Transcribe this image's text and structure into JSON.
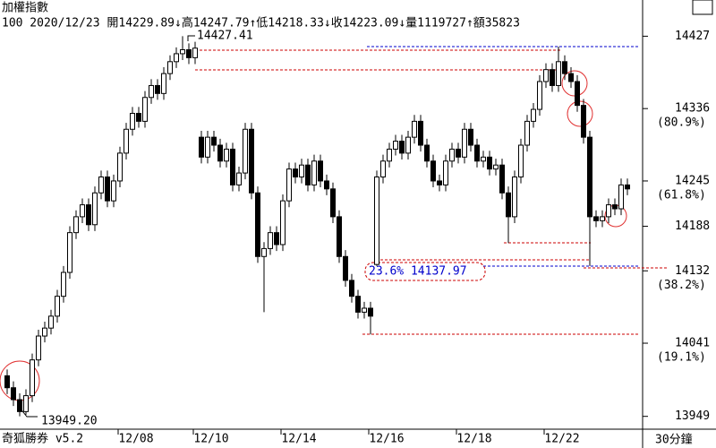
{
  "chart_data": {
    "type": "candlestick",
    "title": "加權指數",
    "subtitle": "100 2020/12/23 開14229.89↓高14247.79↑低14218.33↓收14223.09↓量1119727↑額35823",
    "footer": "奇狐勝券 v5.2",
    "period": "30分鐘",
    "up_color": "#ffffff",
    "down_color": "#000000",
    "categories": [
      null,
      null,
      null,
      null,
      null,
      null,
      null,
      null,
      null,
      null,
      null,
      null,
      null,
      null,
      null,
      null,
      null,
      null,
      null,
      null,
      null,
      null,
      "12/08",
      null,
      null,
      null,
      null,
      null,
      null,
      null,
      null,
      null,
      null,
      null,
      "12/10",
      null,
      null,
      null,
      null,
      null,
      null,
      null,
      null,
      null,
      null,
      null,
      null,
      null,
      "12/14",
      null,
      null,
      null,
      null,
      null,
      null,
      null,
      null,
      null,
      null,
      null,
      null,
      null,
      "12/16",
      null,
      null,
      null,
      null,
      null,
      null,
      null,
      null,
      null,
      null,
      null,
      null,
      null,
      "12/18",
      null,
      null,
      null,
      null,
      null,
      null,
      null,
      null,
      null,
      null,
      null,
      null,
      null,
      "12/22",
      null,
      null,
      null,
      null,
      null,
      null,
      null,
      null,
      null
    ],
    "open": [
      14000,
      13985,
      13970,
      13955,
      13975,
      14020,
      14050,
      14060,
      14075,
      14100,
      14130,
      14180,
      14200,
      14215,
      14190,
      14230,
      14250,
      14220,
      14245,
      14280,
      14310,
      14330,
      14320,
      14350,
      14365,
      14355,
      14380,
      14395,
      14405,
      14410,
      14400,
      14300,
      14275,
      14300,
      14290,
      14270,
      14285,
      14240,
      14255,
      14310,
      14230,
      14150,
      14160,
      14180,
      14165,
      14220,
      14260,
      14250,
      14265,
      14240,
      14270,
      14245,
      14235,
      14200,
      14150,
      14120,
      14100,
      14080,
      14085,
      14140,
      14250,
      14270,
      14285,
      14295,
      14280,
      14300,
      14320,
      14290,
      14270,
      14245,
      14240,
      14270,
      14285,
      14275,
      14310,
      14290,
      14270,
      14275,
      14260,
      14265,
      14230,
      14200,
      14250,
      14290,
      14320,
      14335,
      14370,
      14385,
      14365,
      14395,
      14380,
      14370,
      14340,
      14300,
      14200,
      14195,
      14200,
      14215,
      14210,
      14240
    ],
    "high": [
      14008,
      13993,
      13978,
      13983,
      14028,
      14058,
      14068,
      14083,
      14108,
      14138,
      14188,
      14208,
      14223,
      14223,
      14238,
      14258,
      14258,
      14253,
      14288,
      14318,
      14338,
      14338,
      14358,
      14373,
      14373,
      14388,
      14403,
      14413,
      14427,
      14418,
      14420,
      14308,
      14308,
      14308,
      14298,
      14293,
      14293,
      14263,
      14318,
      14318,
      14238,
      14168,
      14188,
      14188,
      14228,
      14268,
      14268,
      14273,
      14273,
      14278,
      14278,
      14253,
      14243,
      14208,
      14158,
      14128,
      14108,
      14093,
      14093,
      14258,
      14278,
      14293,
      14303,
      14303,
      14308,
      14328,
      14328,
      14298,
      14278,
      14253,
      14278,
      14293,
      14293,
      14318,
      14318,
      14298,
      14283,
      14283,
      14273,
      14273,
      14238,
      14258,
      14298,
      14328,
      14343,
      14378,
      14393,
      14393,
      14414,
      14403,
      14388,
      14378,
      14348,
      14308,
      14208,
      14208,
      14223,
      14223,
      14248,
      14248
    ],
    "low": [
      13977,
      13962,
      13949,
      13951,
      13967,
      14012,
      14042,
      14052,
      14067,
      14092,
      14122,
      14172,
      14192,
      14182,
      14182,
      14222,
      14212,
      14212,
      14237,
      14272,
      14302,
      14312,
      14312,
      14342,
      14347,
      14347,
      14372,
      14387,
      14397,
      14392,
      14392,
      14267,
      14267,
      14282,
      14262,
      14262,
      14232,
      14232,
      14247,
      14222,
      14142,
      14080,
      14152,
      14157,
      14157,
      14212,
      14242,
      14242,
      14232,
      14232,
      14237,
      14227,
      14192,
      14142,
      14112,
      14092,
      14072,
      14072,
      14052,
      14138,
      14242,
      14262,
      14277,
      14272,
      14272,
      14292,
      14282,
      14262,
      14237,
      14232,
      14232,
      14262,
      14267,
      14267,
      14282,
      14262,
      14262,
      14252,
      14252,
      14222,
      14167,
      14192,
      14242,
      14282,
      14312,
      14327,
      14362,
      14357,
      14357,
      14372,
      14362,
      14332,
      14292,
      14138,
      14187,
      14187,
      14192,
      14202,
      14202,
      14227
    ],
    "close": [
      13985,
      13970,
      13955,
      13975,
      14020,
      14050,
      14060,
      14075,
      14100,
      14130,
      14180,
      14200,
      14215,
      14190,
      14230,
      14250,
      14220,
      14245,
      14280,
      14310,
      14330,
      14320,
      14350,
      14365,
      14355,
      14380,
      14395,
      14405,
      14410,
      14400,
      14412,
      14275,
      14300,
      14290,
      14270,
      14285,
      14240,
      14255,
      14310,
      14230,
      14150,
      14160,
      14180,
      14165,
      14220,
      14260,
      14250,
      14265,
      14240,
      14270,
      14245,
      14235,
      14200,
      14150,
      14120,
      14100,
      14080,
      14085,
      14075,
      14250,
      14270,
      14285,
      14295,
      14280,
      14300,
      14320,
      14290,
      14270,
      14245,
      14240,
      14270,
      14285,
      14275,
      14310,
      14290,
      14270,
      14275,
      14260,
      14265,
      14230,
      14200,
      14250,
      14290,
      14320,
      14335,
      14370,
      14385,
      14365,
      14395,
      14380,
      14370,
      14340,
      14300,
      14200,
      14195,
      14200,
      14215,
      14210,
      14240,
      14235
    ],
    "ylim": [
      13934,
      14450
    ],
    "yticks": [
      14427,
      14336,
      14245,
      14188,
      14132,
      14041,
      13949
    ],
    "fib_labels": [
      {
        "value": 14336,
        "label": "(80.9%)"
      },
      {
        "value": 14245,
        "label": "(61.8%)"
      },
      {
        "value": 14132,
        "label": "(38.2%)"
      },
      {
        "value": 14041,
        "label": "(19.1%)"
      }
    ],
    "annotations": [
      {
        "text": "14427.41"
      },
      {
        "text": "13949.20"
      },
      {
        "text": "23.6% 14137.97"
      }
    ]
  }
}
